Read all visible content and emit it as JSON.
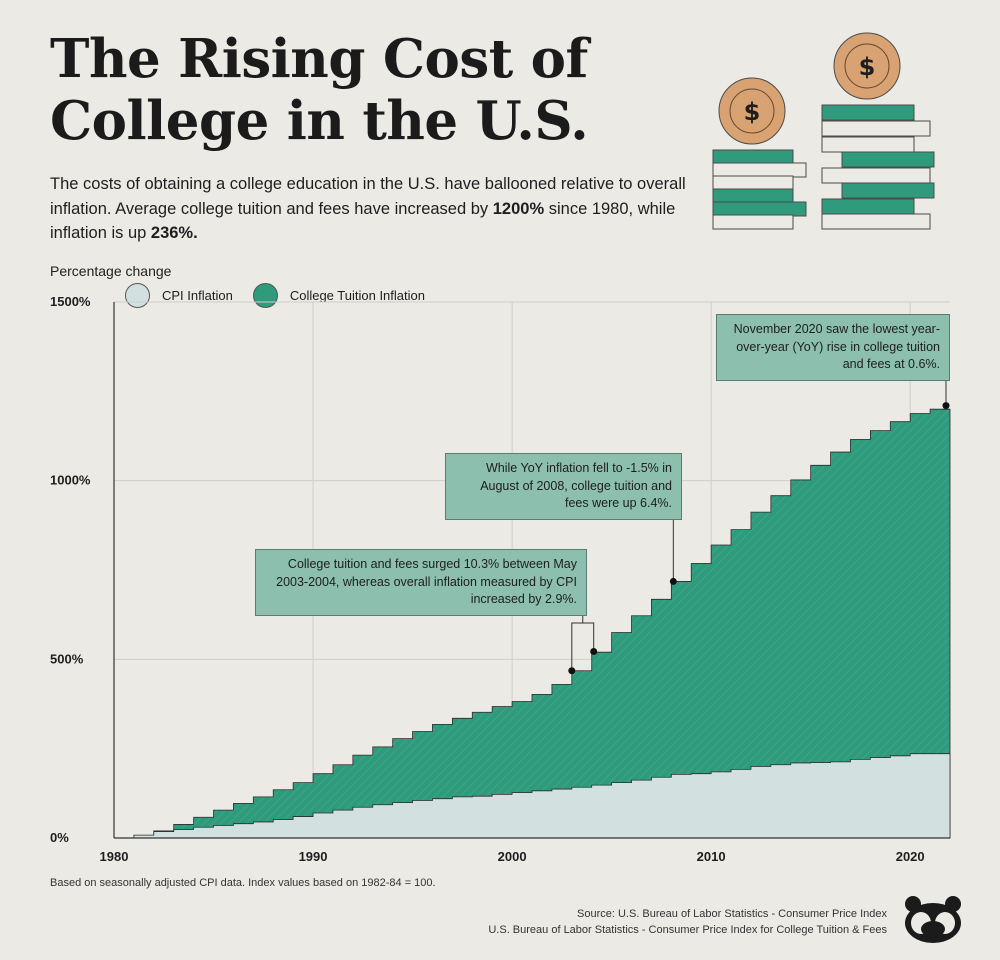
{
  "title": "The Rising Cost of College in the U.S.",
  "subtitle": {
    "pre": "The costs of obtaining a college education in the U.S. have ballooned relative to overall inflation. Average college tuition and fees have increased by ",
    "tuition_pct": "1200%",
    "mid": " since 1980, while inflation is up ",
    "cpi_pct": "236%."
  },
  "y_axis_title": "Percentage change",
  "legend": {
    "cpi": "CPI Inflation",
    "college": "College Tuition Inflation",
    "cpi_icon": "chart-icon",
    "college_icon": "mailbox-icon"
  },
  "colors": {
    "college": "#2f9a7c",
    "cpi": "#d3e0e0",
    "annotation": "#8cbfae",
    "coin": "#d9a273",
    "background": "#ebeae5"
  },
  "annotations": {
    "a2003": "College tuition and fees surged 10.3% between May 2003-2004, whereas overall inflation measured by CPI increased by 2.9%.",
    "a2008": "While YoY inflation fell to -1.5% in August of 2008, college tuition and fees were up 6.4%.",
    "a2020": "November 2020 saw the lowest year-over-year (YoY) rise in college tuition and fees at 0.6%."
  },
  "footnote": "Based on seasonally adjusted CPI data. Index values based on 1982-84 = 100.",
  "source": {
    "line1": "Source: U.S. Bureau of Labor Statistics - Consumer Price Index",
    "line2": "U.S. Bureau of Labor Statistics - Consumer Price Index for College Tuition & Fees"
  },
  "decoration": {
    "coin_symbol": "$"
  },
  "chart_data": {
    "type": "area",
    "step": true,
    "xlim": [
      1980,
      2022
    ],
    "ylim": [
      0,
      1500
    ],
    "x_ticks": [
      1980,
      1990,
      2000,
      2010,
      2020
    ],
    "y_ticks": [
      0,
      500,
      1000,
      1500
    ],
    "y_tick_labels": [
      "0%",
      "500%",
      "1000%",
      "1500%"
    ],
    "x": [
      1980,
      1981,
      1982,
      1983,
      1984,
      1985,
      1986,
      1987,
      1988,
      1989,
      1990,
      1991,
      1992,
      1993,
      1994,
      1995,
      1996,
      1997,
      1998,
      1999,
      2000,
      2001,
      2002,
      2003,
      2004,
      2005,
      2006,
      2007,
      2008,
      2009,
      2010,
      2011,
      2012,
      2013,
      2014,
      2015,
      2016,
      2017,
      2018,
      2019,
      2020,
      2021,
      2022
    ],
    "series": [
      {
        "name": "College Tuition Inflation",
        "values": [
          0,
          5,
          20,
          38,
          58,
          78,
          97,
          115,
          135,
          155,
          180,
          205,
          232,
          255,
          278,
          298,
          318,
          335,
          352,
          368,
          382,
          402,
          430,
          468,
          520,
          575,
          622,
          668,
          718,
          768,
          820,
          863,
          912,
          958,
          1002,
          1043,
          1080,
          1115,
          1140,
          1165,
          1188,
          1200,
          1200
        ]
      },
      {
        "name": "CPI Inflation",
        "values": [
          0,
          8,
          18,
          24,
          30,
          35,
          40,
          45,
          52,
          60,
          70,
          78,
          86,
          93,
          99,
          105,
          110,
          115,
          117,
          122,
          127,
          132,
          137,
          142,
          148,
          155,
          162,
          170,
          178,
          180,
          185,
          192,
          200,
          205,
          210,
          211,
          213,
          220,
          225,
          230,
          236,
          236,
          236
        ]
      }
    ],
    "annotation_points": [
      {
        "x": 2003.0,
        "y": 468
      },
      {
        "x": 2004.1,
        "y": 522
      },
      {
        "x": 2008.1,
        "y": 718
      },
      {
        "x": 2021.9,
        "y": 1210
      }
    ]
  }
}
